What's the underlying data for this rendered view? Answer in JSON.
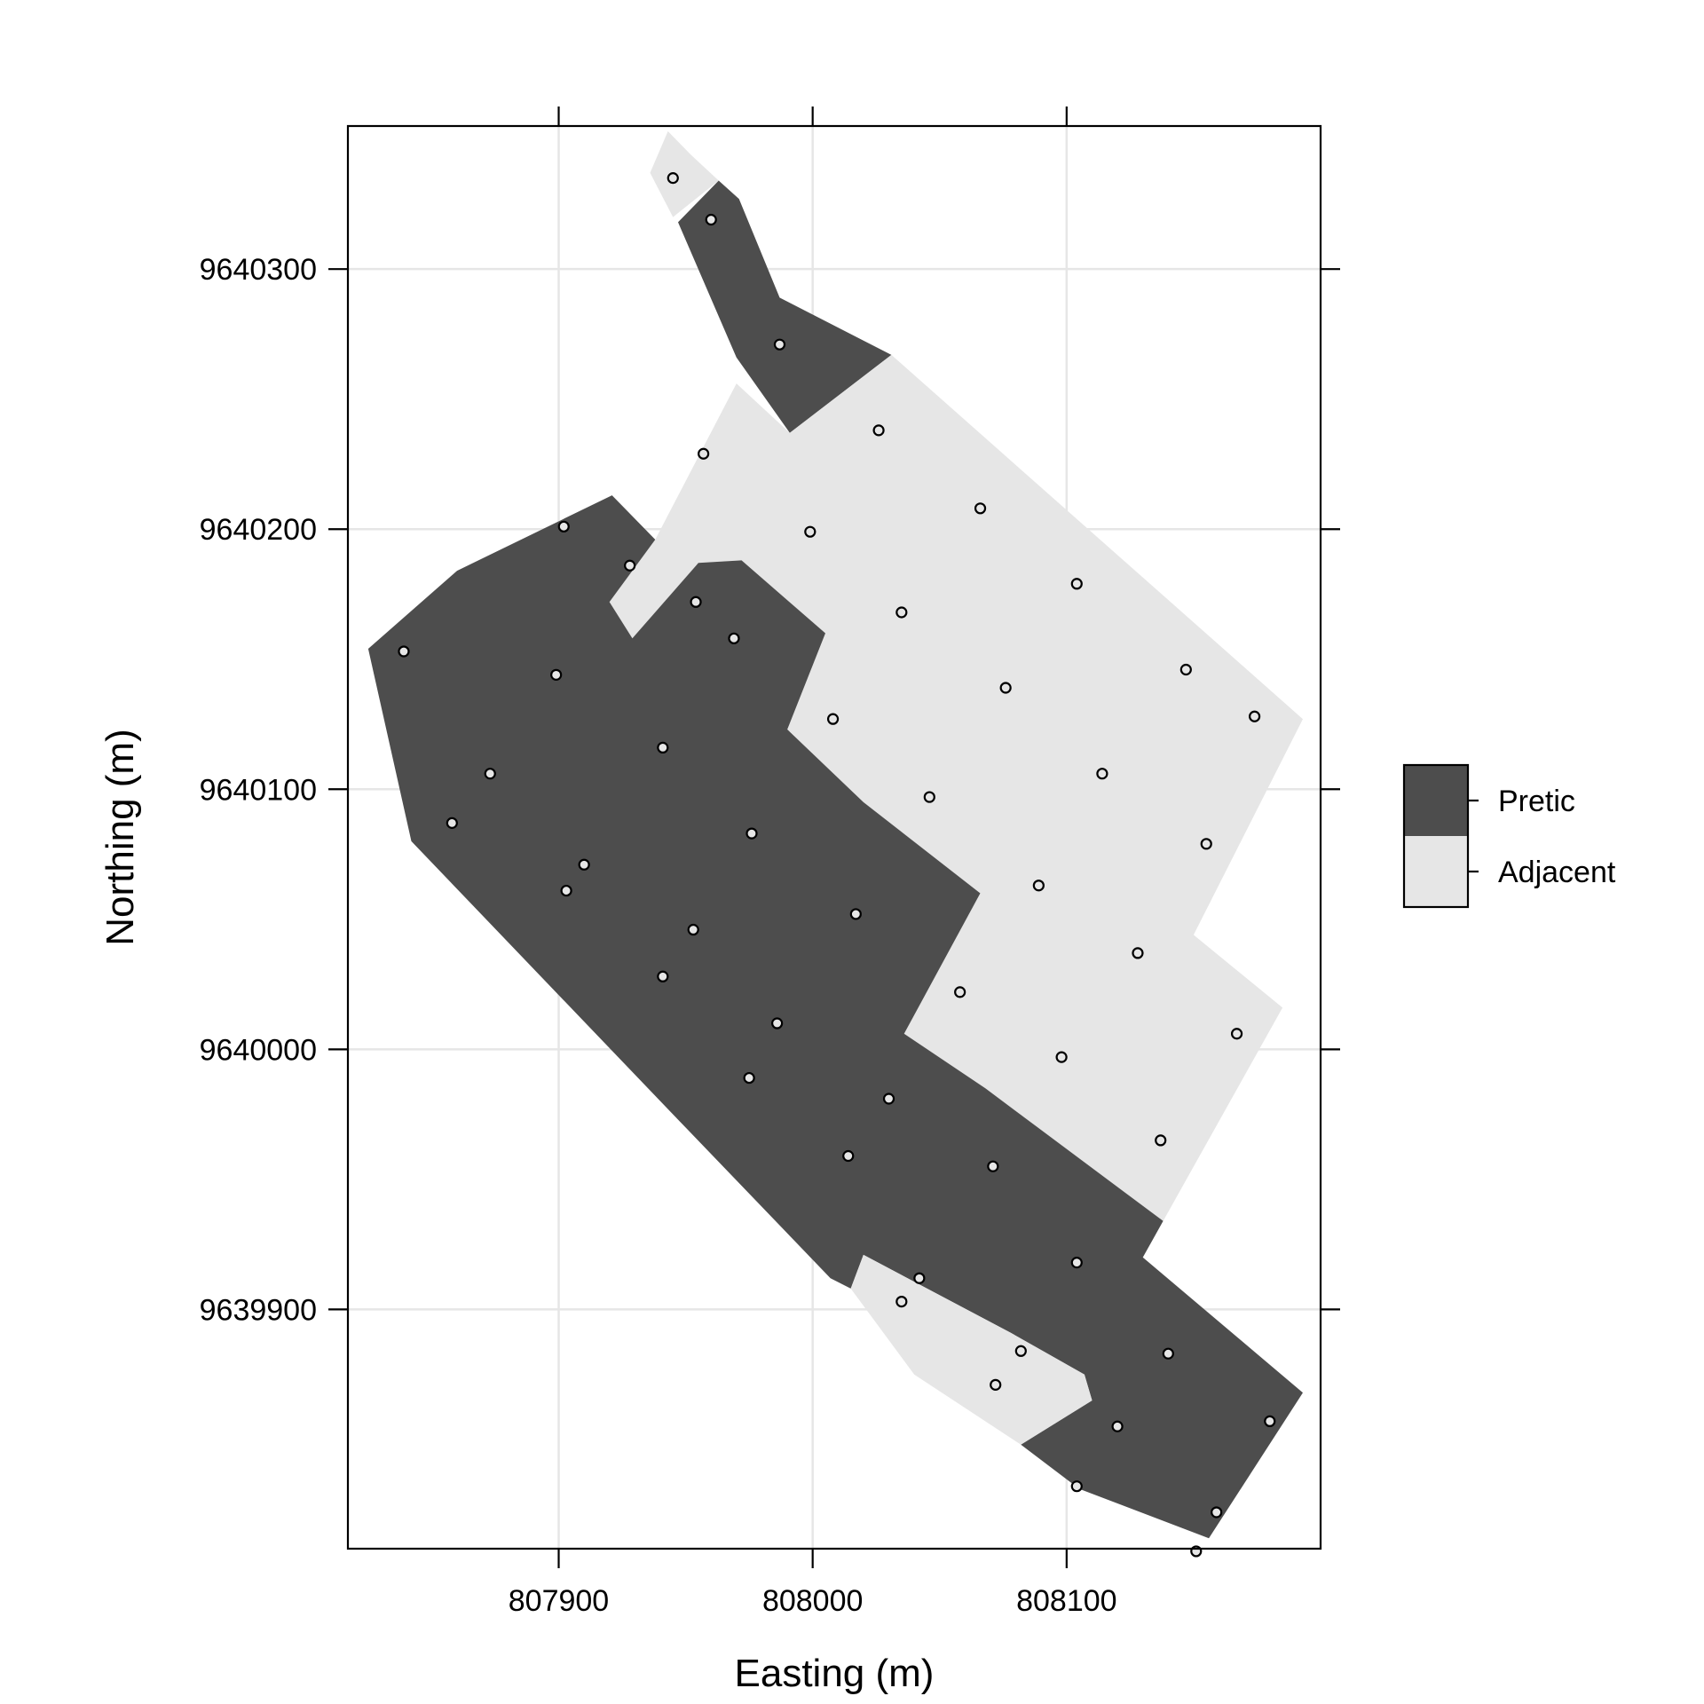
{
  "chart_data": {
    "type": "map",
    "xlabel": "Easting (m)",
    "ylabel": "Northing (m)",
    "xlim": [
      807817,
      808200
    ],
    "ylim": [
      9639808,
      9640355
    ],
    "xticks": [
      807900,
      808000,
      808100
    ],
    "yticks": [
      9639900,
      9640000,
      9640100,
      9640200,
      9640300
    ],
    "grid": true,
    "legend_placement": "right",
    "classes": [
      {
        "name": "Pretic",
        "color": "#4d4d4d"
      },
      {
        "name": "Adjacent",
        "color": "#e6e6e6"
      }
    ],
    "regions": [
      {
        "class": "Adjacent",
        "polygon": [
          [
            807943,
            9640353
          ],
          [
            807952,
            9640344
          ],
          [
            807963,
            9640334
          ],
          [
            807945,
            9640320
          ],
          [
            807936,
            9640337
          ]
        ]
      },
      {
        "class": "Pretic",
        "polygon": [
          [
            807947,
            9640318
          ],
          [
            807963,
            9640334
          ],
          [
            807971,
            9640327
          ],
          [
            807987,
            9640289
          ],
          [
            808031,
            9640267
          ],
          [
            807991,
            9640237
          ],
          [
            807970,
            9640266
          ]
        ]
      },
      {
        "class": "Adjacent",
        "polygon": [
          [
            807970,
            9640256
          ],
          [
            807991,
            9640237
          ],
          [
            808031,
            9640267
          ],
          [
            808193,
            9640127
          ],
          [
            808150,
            9640044
          ],
          [
            808185,
            9640016
          ],
          [
            808138,
            9639934
          ],
          [
            808068,
            9639985
          ],
          [
            808036,
            9640006
          ],
          [
            808066,
            9640060
          ],
          [
            808020,
            9640095
          ],
          [
            807990,
            9640123
          ],
          [
            808005,
            9640160
          ],
          [
            807972,
            9640188
          ],
          [
            807955,
            9640187
          ],
          [
            807929,
            9640158
          ],
          [
            807920,
            9640172
          ],
          [
            807938,
            9640196
          ]
        ]
      },
      {
        "class": "Pretic",
        "polygon": [
          [
            807921,
            9640213
          ],
          [
            807938,
            9640196
          ],
          [
            807920,
            9640172
          ],
          [
            807929,
            9640158
          ],
          [
            807955,
            9640187
          ],
          [
            807972,
            9640188
          ],
          [
            808005,
            9640160
          ],
          [
            807990,
            9640123
          ],
          [
            808020,
            9640095
          ],
          [
            808066,
            9640060
          ],
          [
            808036,
            9640006
          ],
          [
            808068,
            9639985
          ],
          [
            808138,
            9639934
          ],
          [
            808130,
            9639920
          ],
          [
            808193,
            9639868
          ],
          [
            808156,
            9639812
          ],
          [
            808105,
            9639831
          ],
          [
            808082,
            9639848
          ],
          [
            808110,
            9639865
          ],
          [
            808107,
            9639875
          ],
          [
            808078,
            9639891
          ],
          [
            808020,
            9639921
          ],
          [
            808015,
            9639908
          ],
          [
            808007,
            9639912
          ],
          [
            807945,
            9639975
          ],
          [
            807842,
            9640080
          ],
          [
            807825,
            9640154
          ],
          [
            807860,
            9640184
          ]
        ]
      },
      {
        "class": "Adjacent",
        "polygon": [
          [
            808015,
            9639908
          ],
          [
            808020,
            9639921
          ],
          [
            808078,
            9639891
          ],
          [
            808107,
            9639875
          ],
          [
            808110,
            9639865
          ],
          [
            808082,
            9639848
          ],
          [
            808040,
            9639875
          ]
        ]
      }
    ],
    "points": [
      [
        807945,
        9640335
      ],
      [
        807960,
        9640319
      ],
      [
        807987,
        9640271
      ],
      [
        808026,
        9640238
      ],
      [
        807957,
        9640229
      ],
      [
        808066,
        9640208
      ],
      [
        807902,
        9640201
      ],
      [
        807999,
        9640199
      ],
      [
        807928,
        9640186
      ],
      [
        808104,
        9640179
      ],
      [
        807954,
        9640172
      ],
      [
        808035,
        9640168
      ],
      [
        807969,
        9640158
      ],
      [
        807839,
        9640153
      ],
      [
        808147,
        9640146
      ],
      [
        807899,
        9640144
      ],
      [
        808076,
        9640139
      ],
      [
        808174,
        9640128
      ],
      [
        808008,
        9640127
      ],
      [
        807941,
        9640116
      ],
      [
        808114,
        9640106
      ],
      [
        807873,
        9640106
      ],
      [
        808046,
        9640097
      ],
      [
        807858,
        9640087
      ],
      [
        807976,
        9640083
      ],
      [
        808155,
        9640079
      ],
      [
        807910,
        9640071
      ],
      [
        808089,
        9640063
      ],
      [
        807903,
        9640061
      ],
      [
        808017,
        9640052
      ],
      [
        807953,
        9640046
      ],
      [
        808128,
        9640037
      ],
      [
        807941,
        9640028
      ],
      [
        808058,
        9640022
      ],
      [
        807986,
        9640010
      ],
      [
        808167,
        9640006
      ],
      [
        808098,
        9639997
      ],
      [
        807975,
        9639989
      ],
      [
        808030,
        9639981
      ],
      [
        808137,
        9639965
      ],
      [
        808014,
        9639959
      ],
      [
        808071,
        9639955
      ],
      [
        808104,
        9639918
      ],
      [
        808042,
        9639912
      ],
      [
        808035,
        9639903
      ],
      [
        808082,
        9639884
      ],
      [
        808140,
        9639883
      ],
      [
        808072,
        9639871
      ],
      [
        808180,
        9639857
      ],
      [
        808120,
        9639855
      ],
      [
        808104,
        9639832
      ],
      [
        808159,
        9639822
      ],
      [
        808151,
        9639807
      ]
    ]
  }
}
